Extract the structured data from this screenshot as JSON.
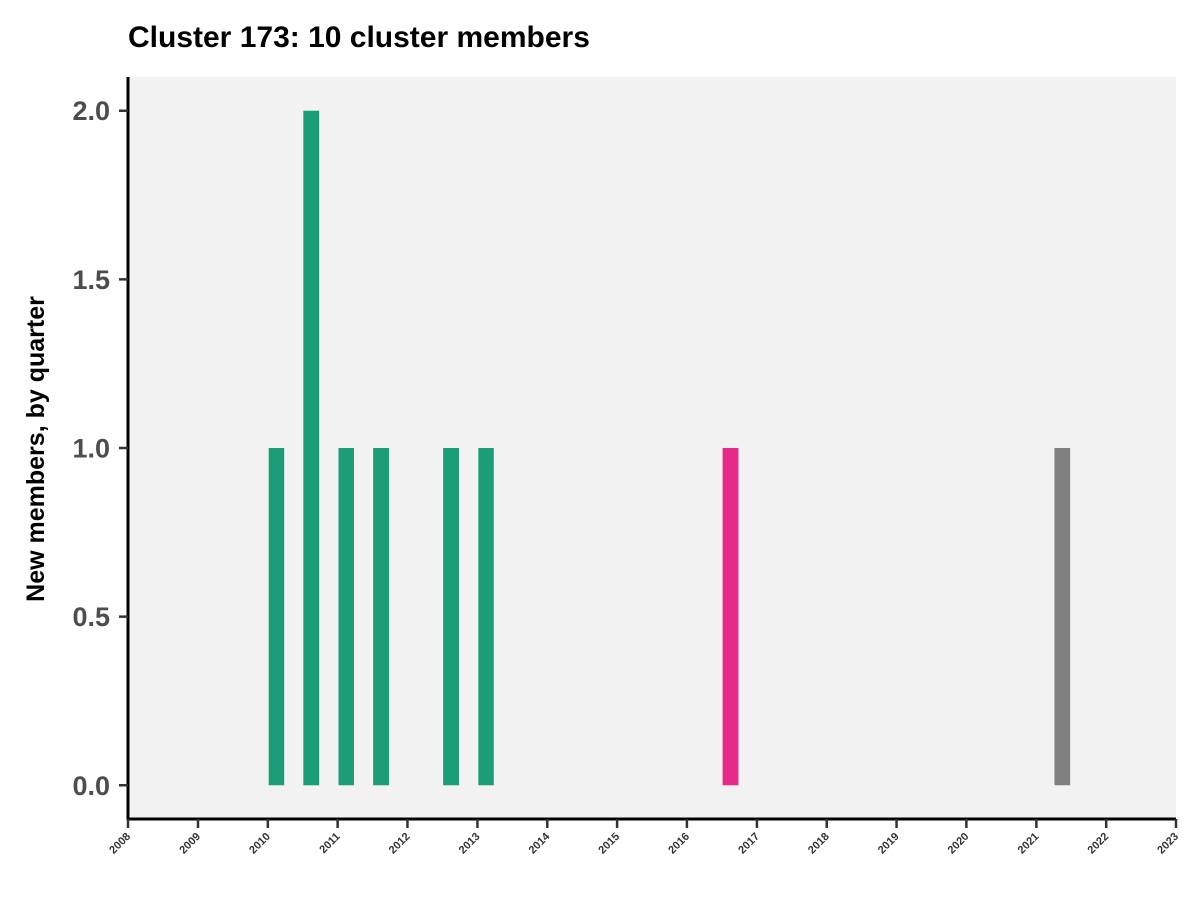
{
  "chart_data": {
    "type": "bar",
    "title": "Cluster 173: 10 cluster members",
    "xlabel": "",
    "ylabel": "New members, by quarter",
    "x_ticks": [
      "2008",
      "2009",
      "2010",
      "2011",
      "2012",
      "2013",
      "2014",
      "2015",
      "2016",
      "2017",
      "2018",
      "2019",
      "2020",
      "2021",
      "2022",
      "2023"
    ],
    "y_ticks": [
      "0.0",
      "0.5",
      "1.0",
      "1.5",
      "2.0"
    ],
    "xlim": [
      "2008-01-01",
      "2023-01-01"
    ],
    "ylim": [
      -0.1,
      2.1
    ],
    "grid": false,
    "legend": "none",
    "bars": [
      {
        "quarter": "2010-Q1",
        "value": 1,
        "color": "#1b9e77"
      },
      {
        "quarter": "2010-Q3",
        "value": 2,
        "color": "#1b9e77"
      },
      {
        "quarter": "2011-Q1",
        "value": 1,
        "color": "#1b9e77"
      },
      {
        "quarter": "2011-Q3",
        "value": 1,
        "color": "#1b9e77"
      },
      {
        "quarter": "2012-Q3",
        "value": 1,
        "color": "#1b9e77"
      },
      {
        "quarter": "2013-Q1",
        "value": 1,
        "color": "#1b9e77"
      },
      {
        "quarter": "2016-Q3",
        "value": 1,
        "color": "#e7298a"
      },
      {
        "quarter": "2021-Q2",
        "value": 1,
        "color": "#808080"
      }
    ],
    "panel_background": "#f2f2f2"
  }
}
